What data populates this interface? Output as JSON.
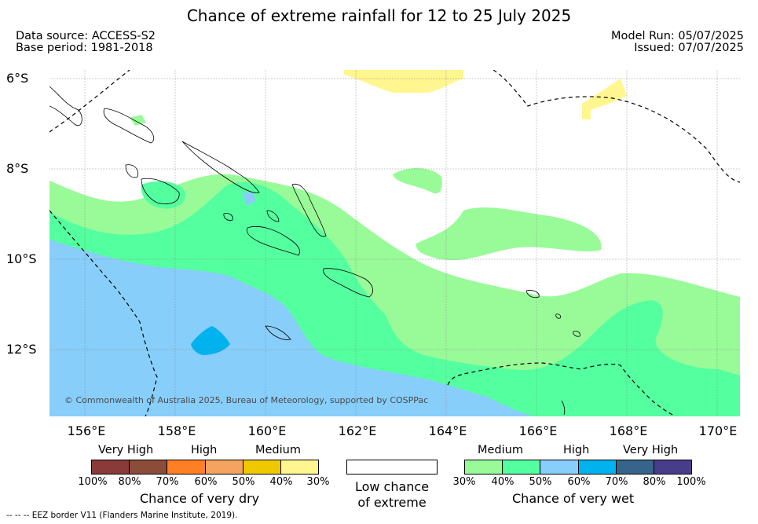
{
  "title": "Chance of extreme rainfall for 12 to 25 July 2025",
  "meta": {
    "data_source": "Data source: ACCESS-S2",
    "base_period": "Base period: 1981-2018",
    "model_run": "Model Run: 05/07/2025",
    "issued": "Issued: 07/07/2025"
  },
  "map": {
    "lat_labels": [
      "6°S",
      "8°S",
      "10°S",
      "12°S"
    ],
    "lon_labels": [
      "156°E",
      "158°E",
      "160°E",
      "162°E",
      "164°E",
      "166°E",
      "168°E",
      "170°E"
    ],
    "copyright": "© Commonwealth of Australia 2025, Bureau of Meteorology, supported by COSPPac",
    "colors": {
      "wet_medium_30_40": "#98fb98",
      "wet_medium_40_50": "#54ff9f",
      "wet_high_50_60": "#87cefa",
      "wet_high_60_70": "#00b2ee",
      "dry_medium_30_40": "#fff68f",
      "land_outline": "#000000",
      "eez_border": "#000000"
    }
  },
  "legend": {
    "dry": {
      "categories": [
        "Very High",
        "High",
        "Medium"
      ],
      "ticks": [
        "100%",
        "80%",
        "70%",
        "60%",
        "50%",
        "40%",
        "30%"
      ],
      "colors": [
        "#8b3a3a",
        "#8b4c39",
        "#ff7f24",
        "#f4a460",
        "#eec900",
        "#fff68f"
      ],
      "label": "Chance of very dry"
    },
    "neutral": {
      "label_line1": "Low chance",
      "label_line2": "of extreme",
      "color": "#ffffff"
    },
    "wet": {
      "categories": [
        "Medium",
        "High",
        "Very High"
      ],
      "ticks": [
        "30%",
        "40%",
        "50%",
        "60%",
        "70%",
        "80%",
        "100%"
      ],
      "colors": [
        "#98fb98",
        "#54ff9f",
        "#87cefa",
        "#00b2ee",
        "#36648b",
        "#483d8b"
      ],
      "label": "Chance of very wet"
    }
  },
  "footer": "--  --  -- EEZ border V11 (Flanders Marine Institute, 2019)."
}
